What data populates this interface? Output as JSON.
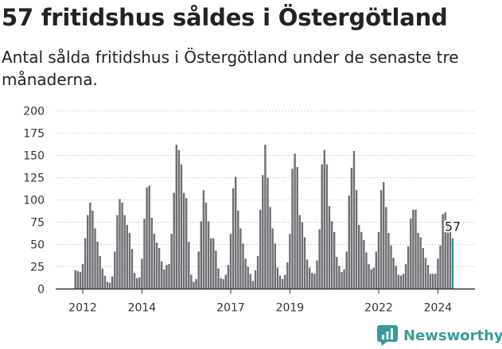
{
  "header": {
    "title": "57 fritidshus såldes i Östergötland",
    "subtitle": "Antal sålda fritidshus i Östergötland under de senaste tre månaderna."
  },
  "brand": {
    "name": "Newsworthy",
    "icon": "newsworthy-logo-icon",
    "color": "#3a9a9a"
  },
  "colors": {
    "bar": "#6e6e73",
    "highlight": "#1a9a9a",
    "axis": "#333333",
    "grid": "#d4d4d4"
  },
  "chart_data": {
    "type": "bar",
    "title": "",
    "xlabel": "",
    "ylabel": "",
    "ylim": [
      0,
      200
    ],
    "yticks": [
      0,
      25,
      50,
      75,
      100,
      125,
      150,
      175,
      200
    ],
    "grid": true,
    "xtick_labels": [
      "2012",
      "2014",
      "2017",
      "2019",
      "2022",
      "2024"
    ],
    "highlight_label": "57",
    "first_period": "2011-10",
    "values": [
      21,
      20,
      19,
      28,
      57,
      83,
      97,
      88,
      68,
      53,
      37,
      23,
      15,
      8,
      7,
      14,
      42,
      83,
      101,
      97,
      83,
      72,
      63,
      45,
      18,
      12,
      13,
      34,
      79,
      114,
      116,
      80,
      62,
      52,
      46,
      31,
      22,
      27,
      28,
      62,
      108,
      162,
      156,
      140,
      108,
      102,
      53,
      16,
      8,
      11,
      42,
      76,
      111,
      97,
      76,
      57,
      57,
      43,
      23,
      12,
      11,
      16,
      27,
      62,
      113,
      126,
      88,
      68,
      51,
      34,
      25,
      17,
      9,
      21,
      37,
      89,
      128,
      162,
      125,
      92,
      68,
      51,
      24,
      15,
      11,
      16,
      30,
      62,
      135,
      152,
      137,
      83,
      75,
      58,
      33,
      24,
      18,
      17,
      32,
      67,
      140,
      156,
      140,
      93,
      76,
      64,
      36,
      26,
      19,
      22,
      42,
      105,
      136,
      155,
      111,
      72,
      64,
      55,
      41,
      28,
      22,
      24,
      42,
      64,
      111,
      120,
      92,
      63,
      49,
      35,
      26,
      16,
      15,
      17,
      28,
      48,
      79,
      89,
      89,
      63,
      58,
      46,
      35,
      27,
      17,
      17,
      17,
      34,
      49,
      84,
      86,
      70,
      69,
      57
    ]
  }
}
